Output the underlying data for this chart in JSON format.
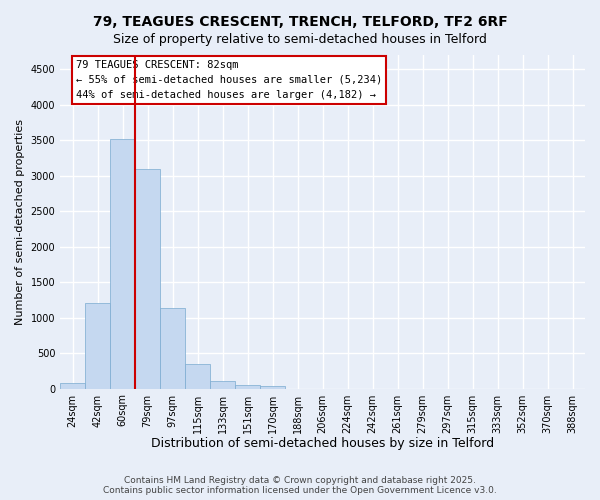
{
  "title_line1": "79, TEAGUES CRESCENT, TRENCH, TELFORD, TF2 6RF",
  "title_line2": "Size of property relative to semi-detached houses in Telford",
  "xlabel": "Distribution of semi-detached houses by size in Telford",
  "ylabel": "Number of semi-detached properties",
  "categories": [
    "24sqm",
    "42sqm",
    "60sqm",
    "79sqm",
    "97sqm",
    "115sqm",
    "133sqm",
    "151sqm",
    "170sqm",
    "188sqm",
    "206sqm",
    "224sqm",
    "242sqm",
    "261sqm",
    "279sqm",
    "297sqm",
    "315sqm",
    "333sqm",
    "352sqm",
    "370sqm",
    "388sqm"
  ],
  "bar_values": [
    80,
    1200,
    3520,
    3100,
    1140,
    340,
    100,
    50,
    30,
    0,
    0,
    0,
    0,
    0,
    0,
    0,
    0,
    0,
    0,
    0,
    0
  ],
  "bar_color": "#c5d8f0",
  "bar_edge_color": "#7aaad0",
  "vline_index": 2.5,
  "annotation_text": "79 TEAGUES CRESCENT: 82sqm\n← 55% of semi-detached houses are smaller (5,234)\n44% of semi-detached houses are larger (4,182) →",
  "annotation_box_facecolor": "#ffffff",
  "annotation_box_edgecolor": "#cc0000",
  "vline_color": "#cc0000",
  "ylim": [
    0,
    4700
  ],
  "yticks": [
    0,
    500,
    1000,
    1500,
    2000,
    2500,
    3000,
    3500,
    4000,
    4500
  ],
  "footnote": "Contains HM Land Registry data © Crown copyright and database right 2025.\nContains public sector information licensed under the Open Government Licence v3.0.",
  "bg_color": "#e8eef8",
  "grid_color": "#ffffff",
  "title_fontsize": 10,
  "subtitle_fontsize": 9,
  "axis_label_fontsize": 8,
  "tick_fontsize": 7,
  "annotation_fontsize": 7.5,
  "footnote_fontsize": 6.5
}
